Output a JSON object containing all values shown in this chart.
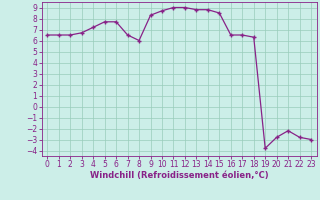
{
  "xlabel": "Windchill (Refroidissement éolien,°C)",
  "x_values": [
    0,
    1,
    2,
    3,
    4,
    5,
    6,
    7,
    8,
    9,
    10,
    11,
    12,
    13,
    14,
    15,
    16,
    17,
    18,
    19,
    20,
    21,
    22,
    23
  ],
  "y_values": [
    6.5,
    6.5,
    6.5,
    6.7,
    7.2,
    7.7,
    7.7,
    6.5,
    6.0,
    8.3,
    8.7,
    9.0,
    9.0,
    8.8,
    8.8,
    8.5,
    6.5,
    6.5,
    6.3,
    -3.8,
    -2.8,
    -2.2,
    -2.8,
    -3.0
  ],
  "line_color": "#882288",
  "marker": "+",
  "bg_color": "#cceee8",
  "grid_color": "#99ccbb",
  "ylim": [
    -4.5,
    9.5
  ],
  "xlim": [
    -0.5,
    23.5
  ],
  "yticks": [
    -4,
    -3,
    -2,
    -1,
    0,
    1,
    2,
    3,
    4,
    5,
    6,
    7,
    8,
    9
  ],
  "xticks": [
    0,
    1,
    2,
    3,
    4,
    5,
    6,
    7,
    8,
    9,
    10,
    11,
    12,
    13,
    14,
    15,
    16,
    17,
    18,
    19,
    20,
    21,
    22,
    23
  ],
  "tick_fontsize": 5.5,
  "xlabel_fontsize": 6.0,
  "marker_size": 3.5,
  "line_width": 0.9
}
